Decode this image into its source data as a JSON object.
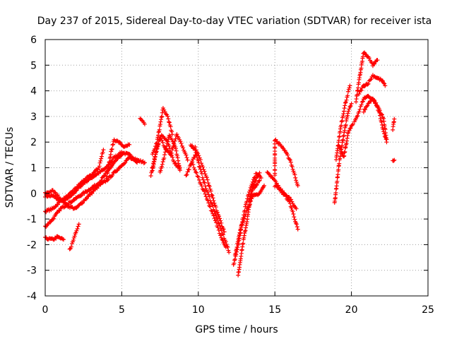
{
  "chart_data": {
    "type": "scatter",
    "title": "Day 237 of 2015, Sidereal Day-to-day VTEC variation (SDTVAR) for receiver ista",
    "xlabel": "GPS time / hours",
    "ylabel": "SDTVAR / TECUs",
    "xlim": [
      0,
      25
    ],
    "ylim": [
      -4,
      6
    ],
    "xticks": [
      "0",
      "5",
      "10",
      "15",
      "20",
      "25"
    ],
    "yticks": [
      "-4",
      "-3",
      "-2",
      "-1",
      "0",
      "1",
      "2",
      "3",
      "4",
      "5",
      "6"
    ],
    "grid": true,
    "legend": "none",
    "marker": "+",
    "color": "#ff0000",
    "series": [
      {
        "tracks": [
          [
            [
              0.0,
              -0.1
            ],
            [
              0.5,
              -0.1
            ],
            [
              1.0,
              -0.3
            ],
            [
              1.5,
              -0.2
            ],
            [
              2.0,
              0.1
            ],
            [
              2.5,
              0.4
            ],
            [
              3.0,
              0.6
            ],
            [
              3.5,
              0.8
            ],
            [
              4.0,
              1.0
            ],
            [
              4.5,
              1.4
            ],
            [
              5.0,
              1.6
            ],
            [
              5.5,
              1.5
            ],
            [
              6.0,
              1.3
            ],
            [
              6.5,
              1.2
            ]
          ],
          [
            [
              0.0,
              -0.7
            ],
            [
              0.5,
              -0.6
            ],
            [
              1.0,
              -0.3
            ],
            [
              1.5,
              -0.1
            ],
            [
              2.0,
              0.2
            ],
            [
              2.5,
              0.5
            ],
            [
              3.0,
              0.7
            ],
            [
              3.5,
              1.0
            ],
            [
              3.8,
              1.7
            ]
          ],
          [
            [
              0.0,
              -1.3
            ],
            [
              0.5,
              -1.0
            ],
            [
              1.0,
              -0.6
            ],
            [
              1.5,
              -0.4
            ],
            [
              2.0,
              -0.2
            ],
            [
              2.5,
              0.0
            ],
            [
              3.0,
              0.2
            ],
            [
              3.5,
              0.4
            ],
            [
              4.0,
              0.8
            ],
            [
              4.5,
              1.2
            ],
            [
              5.0,
              1.5
            ]
          ],
          [
            [
              0.0,
              -1.75
            ],
            [
              0.5,
              -1.8
            ],
            [
              0.8,
              -1.7
            ],
            [
              1.2,
              -1.8
            ]
          ],
          [
            [
              0.0,
              0.0
            ],
            [
              0.5,
              0.1
            ],
            [
              1.0,
              -0.2
            ],
            [
              1.5,
              -0.5
            ],
            [
              2.0,
              -0.6
            ],
            [
              2.5,
              -0.3
            ],
            [
              3.0,
              0.0
            ],
            [
              3.5,
              0.3
            ],
            [
              4.0,
              0.5
            ],
            [
              4.5,
              0.8
            ],
            [
              5.0,
              1.1
            ],
            [
              5.5,
              1.4
            ],
            [
              6.0,
              1.2
            ]
          ],
          [
            [
              1.6,
              -2.2
            ],
            [
              1.8,
              -1.9
            ],
            [
              2.0,
              -1.5
            ],
            [
              2.2,
              -1.2
            ]
          ],
          [
            [
              4.0,
              0.6
            ],
            [
              4.3,
              1.6
            ],
            [
              4.5,
              2.1
            ],
            [
              4.8,
              2.0
            ],
            [
              5.2,
              1.8
            ],
            [
              5.5,
              1.9
            ]
          ],
          [
            [
              6.2,
              2.9
            ],
            [
              6.5,
              2.7
            ]
          ],
          [
            [
              6.9,
              0.7
            ],
            [
              7.2,
              1.5
            ],
            [
              7.5,
              2.2
            ],
            [
              7.8,
              1.8
            ],
            [
              8.2,
              1.5
            ],
            [
              8.6,
              2.3
            ],
            [
              9.0,
              1.8
            ],
            [
              9.3,
              1.3
            ]
          ],
          [
            [
              7.0,
              0.9
            ],
            [
              7.3,
              1.8
            ],
            [
              7.6,
              2.3
            ],
            [
              8.0,
              2.0
            ],
            [
              8.4,
              1.2
            ],
            [
              8.8,
              1.0
            ]
          ],
          [
            [
              7.0,
              1.5
            ],
            [
              7.3,
              2.0
            ],
            [
              7.7,
              3.3
            ],
            [
              8.0,
              3.0
            ],
            [
              8.3,
              2.3
            ]
          ],
          [
            [
              7.5,
              0.8
            ],
            [
              7.8,
              1.5
            ],
            [
              8.1,
              2.3
            ],
            [
              8.5,
              1.8
            ],
            [
              8.8,
              0.9
            ]
          ],
          [
            [
              9.5,
              1.9
            ],
            [
              9.8,
              1.7
            ],
            [
              10.1,
              1.0
            ],
            [
              10.5,
              0.2
            ],
            [
              11.0,
              -0.6
            ],
            [
              11.4,
              -1.3
            ],
            [
              11.8,
              -1.9
            ],
            [
              12.0,
              -2.3
            ]
          ],
          [
            [
              9.6,
              1.2
            ],
            [
              10.0,
              0.6
            ],
            [
              10.5,
              -0.1
            ],
            [
              11.0,
              -0.9
            ],
            [
              11.5,
              -1.7
            ],
            [
              11.8,
              -2.1
            ]
          ],
          [
            [
              9.8,
              1.8
            ],
            [
              10.2,
              1.2
            ],
            [
              10.6,
              0.5
            ],
            [
              11.0,
              -0.3
            ],
            [
              11.4,
              -1.0
            ],
            [
              11.7,
              -1.5
            ]
          ],
          [
            [
              9.2,
              0.7
            ],
            [
              9.5,
              1.1
            ],
            [
              9.8,
              1.5
            ]
          ],
          [
            [
              12.3,
              -2.8
            ],
            [
              12.6,
              -2.0
            ],
            [
              12.9,
              -1.0
            ],
            [
              13.2,
              -0.2
            ],
            [
              13.5,
              0.4
            ],
            [
              13.8,
              0.8
            ],
            [
              14.1,
              0.6
            ]
          ],
          [
            [
              12.6,
              -3.2
            ],
            [
              12.9,
              -2.0
            ],
            [
              13.2,
              -1.0
            ],
            [
              13.5,
              0.2
            ],
            [
              13.8,
              0.6
            ],
            [
              14.0,
              0.8
            ]
          ],
          [
            [
              12.4,
              -2.4
            ],
            [
              12.8,
              -1.3
            ],
            [
              13.2,
              -0.6
            ],
            [
              13.6,
              -0.1
            ],
            [
              14.0,
              0.0
            ],
            [
              14.3,
              0.3
            ]
          ],
          [
            [
              13.3,
              -0.3
            ],
            [
              13.6,
              0.2
            ],
            [
              14.0,
              0.5
            ]
          ],
          [
            [
              15.0,
              0.7
            ],
            [
              15.0,
              2.1
            ],
            [
              15.5,
              1.8
            ],
            [
              16.0,
              1.3
            ],
            [
              16.3,
              0.7
            ],
            [
              16.5,
              0.3
            ]
          ],
          [
            [
              15.0,
              0.3
            ],
            [
              15.5,
              0.1
            ],
            [
              16.0,
              -0.4
            ],
            [
              16.5,
              -1.4
            ]
          ],
          [
            [
              14.5,
              0.8
            ],
            [
              15.0,
              0.5
            ],
            [
              15.5,
              0.0
            ],
            [
              16.0,
              -0.2
            ],
            [
              16.4,
              -0.6
            ]
          ],
          [
            [
              18.9,
              -0.4
            ],
            [
              19.2,
              1.2
            ],
            [
              19.5,
              2.3
            ],
            [
              19.8,
              3.2
            ],
            [
              20.0,
              3.5
            ]
          ],
          [
            [
              19.0,
              1.3
            ],
            [
              19.3,
              2.6
            ],
            [
              19.6,
              3.5
            ],
            [
              19.9,
              4.2
            ]
          ],
          [
            [
              19.2,
              1.8
            ],
            [
              19.5,
              1.4
            ],
            [
              19.8,
              2.4
            ],
            [
              20.1,
              2.7
            ]
          ],
          [
            [
              20.2,
              2.8
            ],
            [
              20.5,
              3.2
            ],
            [
              20.8,
              3.7
            ],
            [
              21.1,
              3.8
            ],
            [
              21.5,
              3.6
            ],
            [
              21.8,
              3.3
            ],
            [
              22.1,
              2.9
            ],
            [
              22.3,
              2.1
            ]
          ],
          [
            [
              20.3,
              3.6
            ],
            [
              20.5,
              4.4
            ],
            [
              20.8,
              5.5
            ],
            [
              21.1,
              5.3
            ],
            [
              21.4,
              5.0
            ],
            [
              21.7,
              5.2
            ]
          ],
          [
            [
              20.5,
              3.9
            ],
            [
              20.8,
              4.2
            ],
            [
              21.1,
              4.3
            ],
            [
              21.4,
              4.6
            ],
            [
              21.7,
              4.5
            ],
            [
              22.0,
              4.4
            ],
            [
              22.2,
              4.2
            ]
          ],
          [
            [
              20.8,
              3.2
            ],
            [
              21.1,
              3.5
            ],
            [
              21.4,
              3.7
            ],
            [
              21.8,
              3.2
            ],
            [
              22.1,
              2.4
            ],
            [
              22.3,
              2.0
            ]
          ],
          [
            [
              22.7,
              2.5
            ],
            [
              22.8,
              2.9
            ]
          ],
          [
            [
              22.7,
              1.3
            ],
            [
              22.8,
              1.3
            ]
          ]
        ]
      }
    ]
  }
}
